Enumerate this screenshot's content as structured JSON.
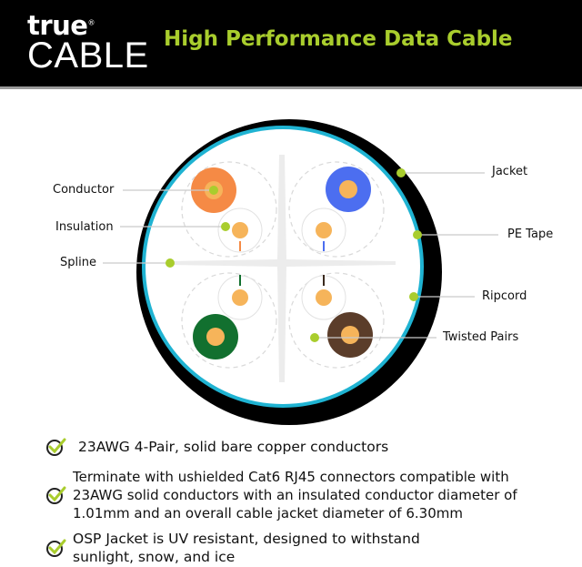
{
  "header": {
    "logo": {
      "top": "true",
      "bottom": "CABLE",
      "mark": "®"
    },
    "title": "High Performance Data Cable"
  },
  "diagram": {
    "labels": {
      "conductor": "Conductor",
      "insulation": "Insulation",
      "spline": "Spline",
      "jacket": "Jacket",
      "pe_tape": "PE Tape",
      "ripcord": "Ripcord",
      "twisted_pairs": "Twisted Pairs"
    },
    "colors": {
      "jacket": "#000000",
      "pe_tape": "#1fb3d2",
      "marker": "#a9cd2d",
      "copper": "#f6b45a",
      "pair_orange": "#f58a45",
      "pair_blue": "#4c6ef0",
      "pair_green": "#12702f",
      "pair_brown": "#5b3d2a"
    }
  },
  "features": [
    {
      "icon": "check-icon",
      "text": "23AWG 4-Pair, solid bare copper conductors"
    },
    {
      "icon": "check-icon",
      "text": "Terminate with ushielded Cat6 RJ45 connectors compatible with 23AWG solid conductors with an insulated conductor diameter of 1.01mm and an overall cable jacket diameter of 6.30mm"
    },
    {
      "icon": "check-icon",
      "text": "OSP Jacket is UV resistant, designed to withstand sunlight, snow, and ice"
    }
  ]
}
